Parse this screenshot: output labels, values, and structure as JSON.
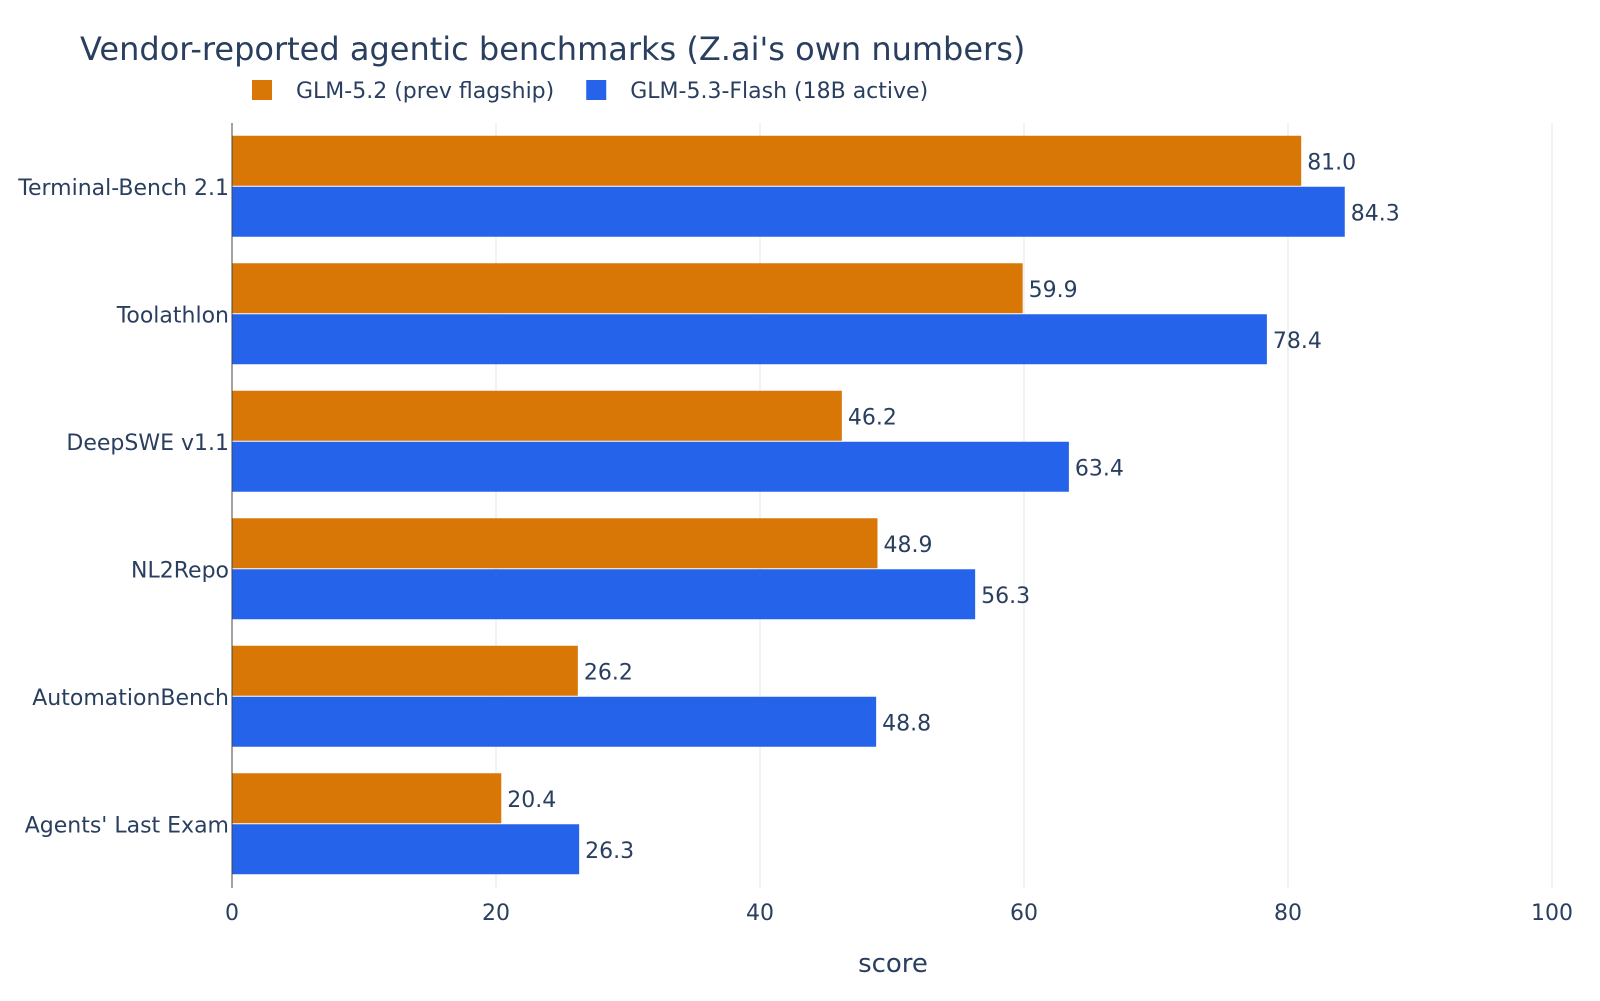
{
  "chart_data": {
    "type": "bar",
    "orientation": "horizontal",
    "title": "Vendor-reported agentic benchmarks (Z.ai's own numbers)",
    "xlabel": "score",
    "ylabel": "",
    "xlim": [
      0,
      100
    ],
    "xticks": [
      0,
      20,
      40,
      60,
      80,
      100
    ],
    "grid": true,
    "legend_position": "top",
    "categories": [
      "Terminal-Bench 2.1",
      "Toolathlon",
      "DeepSWE v1.1",
      "NL2Repo",
      "AutomationBench",
      "Agents' Last Exam"
    ],
    "series": [
      {
        "name": "GLM-5.2 (prev flagship)",
        "color": "#d97706",
        "values": [
          81.0,
          59.9,
          46.2,
          48.9,
          26.2,
          20.4
        ],
        "labels": [
          "81.0",
          "59.9",
          "46.2",
          "48.9",
          "26.2",
          "20.4"
        ]
      },
      {
        "name": "GLM-5.3-Flash (18B active)",
        "color": "#2563eb",
        "values": [
          84.3,
          78.4,
          63.4,
          56.3,
          48.8,
          26.3
        ],
        "labels": [
          "84.3",
          "78.4",
          "63.4",
          "56.3",
          "48.8",
          "26.3"
        ]
      }
    ],
    "colors": {
      "text": "#2a3f5f",
      "grid": "#e6e6e6",
      "axis_line": "#444444"
    }
  }
}
